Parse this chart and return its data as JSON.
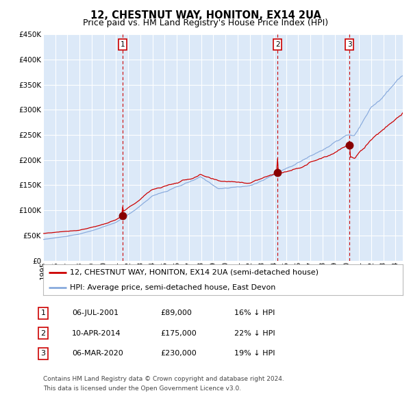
{
  "title": "12, CHESTNUT WAY, HONITON, EX14 2UA",
  "subtitle": "Price paid vs. HM Land Registry's House Price Index (HPI)",
  "ylim": [
    0,
    450000
  ],
  "yticks": [
    0,
    50000,
    100000,
    150000,
    200000,
    250000,
    300000,
    350000,
    400000,
    450000
  ],
  "ytick_labels": [
    "£0",
    "£50K",
    "£100K",
    "£150K",
    "£200K",
    "£250K",
    "£300K",
    "£350K",
    "£400K",
    "£450K"
  ],
  "background_color": "#ffffff",
  "plot_bg_color": "#dce9f8",
  "grid_color": "#ffffff",
  "red_line_color": "#cc0000",
  "blue_line_color": "#88aadd",
  "dashed_line_color": "#cc0000",
  "marker_color": "#880000",
  "sale_labels": [
    "1",
    "2",
    "3"
  ],
  "sale_prices": [
    89000,
    175000,
    230000
  ],
  "legend_red_label": "12, CHESTNUT WAY, HONITON, EX14 2UA (semi-detached house)",
  "legend_blue_label": "HPI: Average price, semi-detached house, East Devon",
  "table_rows": [
    [
      "1",
      "06-JUL-2001",
      "£89,000",
      "16% ↓ HPI"
    ],
    [
      "2",
      "10-APR-2014",
      "£175,000",
      "22% ↓ HPI"
    ],
    [
      "3",
      "06-MAR-2020",
      "£230,000",
      "19% ↓ HPI"
    ]
  ],
  "footer_line1": "Contains HM Land Registry data © Crown copyright and database right 2024.",
  "footer_line2": "This data is licensed under the Open Government Licence v3.0.",
  "title_fontsize": 10.5,
  "subtitle_fontsize": 9,
  "tick_fontsize": 7.5,
  "legend_fontsize": 8,
  "table_fontsize": 8,
  "footer_fontsize": 6.5
}
